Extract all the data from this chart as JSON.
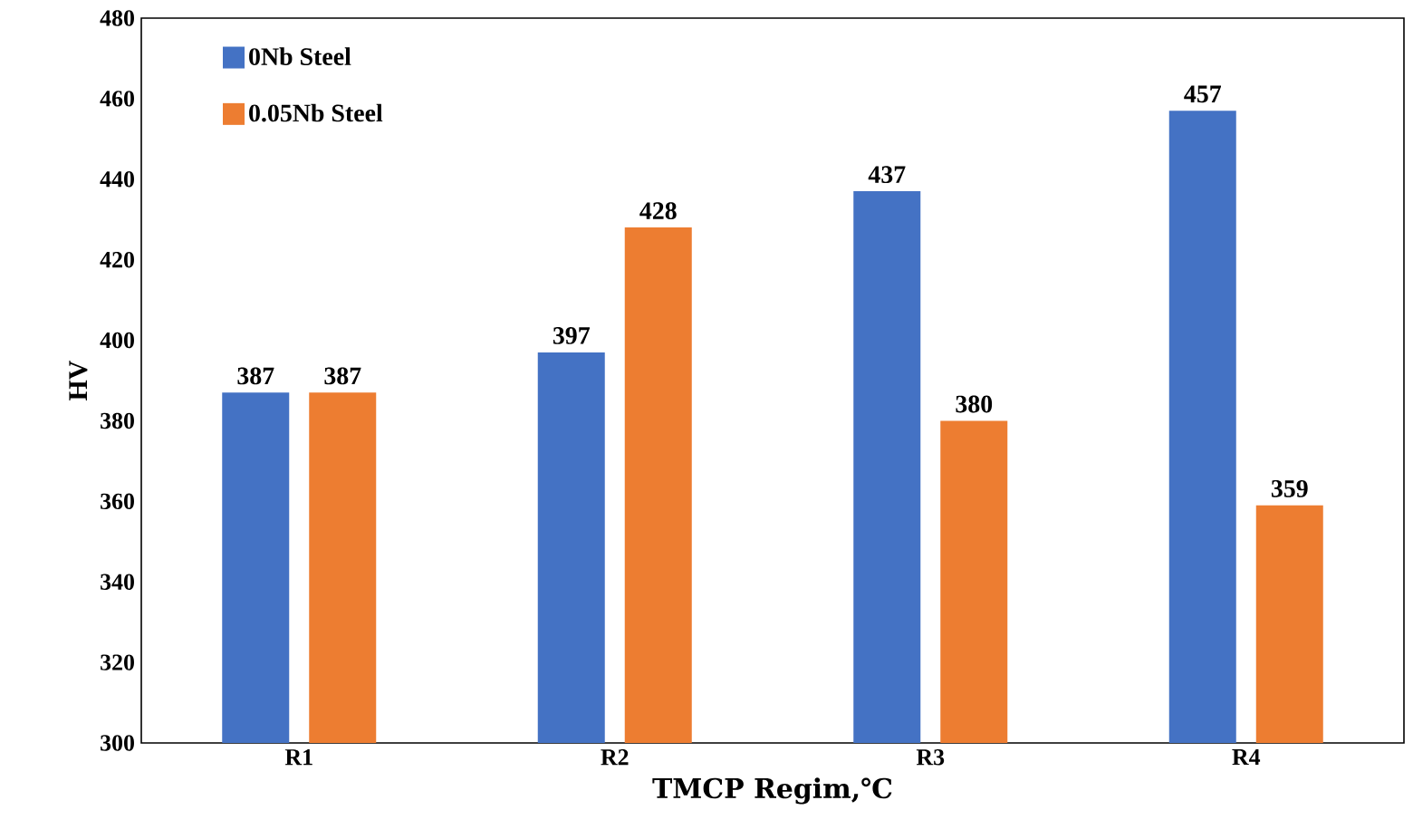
{
  "chart_data": {
    "type": "bar",
    "xlabel": "TMCP Regim,℃",
    "ylabel": "HV",
    "categories": [
      "R1",
      "R2",
      "R3",
      "R4"
    ],
    "series": [
      {
        "name": "0Nb Steel",
        "color": "#4472c4",
        "values": [
          387,
          397,
          437,
          457
        ]
      },
      {
        "name": "0.05Nb Steel",
        "color": "#ed7d31",
        "values": [
          387,
          428,
          380,
          359
        ]
      }
    ],
    "ylim": [
      300,
      480
    ],
    "yticks": [
      300,
      320,
      340,
      360,
      380,
      400,
      420,
      440,
      460,
      480
    ],
    "data_labels": true,
    "legend": "top left",
    "grid": false
  }
}
